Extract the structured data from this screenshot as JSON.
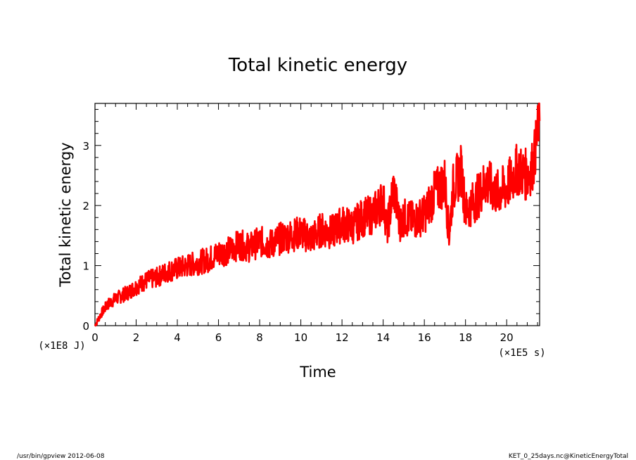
{
  "chart_data": {
    "type": "line",
    "title": "Total kinetic energy",
    "xlabel": "Time",
    "ylabel": "Total kinetic energy",
    "x_scale_label": "(×1E5 s)",
    "y_scale_label": "(×1E8 J)",
    "xlim": [
      0,
      21.6
    ],
    "ylim": [
      0,
      3.7
    ],
    "x_ticks": [
      0,
      2,
      4,
      6,
      8,
      10,
      12,
      14,
      16,
      18,
      20
    ],
    "y_ticks": [
      0,
      1,
      2,
      3
    ],
    "line_color": "#ff0000",
    "series": [
      {
        "name": "KineticEnergyTotal",
        "x": [
          0,
          0.3,
          0.6,
          1.0,
          1.3,
          1.6,
          2.0,
          2.5,
          3.0,
          3.5,
          4.0,
          4.5,
          5.0,
          5.5,
          6.0,
          6.5,
          7.0,
          7.5,
          8.0,
          8.5,
          9.0,
          9.5,
          10.0,
          10.5,
          11.0,
          11.5,
          12.0,
          12.5,
          13.0,
          13.5,
          14.0,
          14.2,
          14.5,
          14.8,
          15.0,
          15.5,
          16.0,
          16.5,
          17.0,
          17.2,
          17.4,
          17.8,
          18.0,
          18.5,
          19.0,
          19.5,
          20.0,
          20.5,
          21.0,
          21.3,
          21.6
        ],
        "values": [
          0.0,
          0.2,
          0.35,
          0.45,
          0.5,
          0.55,
          0.65,
          0.75,
          0.8,
          0.9,
          0.95,
          1.0,
          1.05,
          1.1,
          1.2,
          1.25,
          1.35,
          1.3,
          1.4,
          1.35,
          1.45,
          1.5,
          1.55,
          1.45,
          1.6,
          1.55,
          1.7,
          1.65,
          1.8,
          1.85,
          2.1,
          1.6,
          2.3,
          1.7,
          1.8,
          1.75,
          1.85,
          2.2,
          2.4,
          1.5,
          2.3,
          2.6,
          1.9,
          2.1,
          2.4,
          2.2,
          2.3,
          2.6,
          2.5,
          2.7,
          3.5
        ]
      }
    ]
  },
  "footer": {
    "left": "/usr/bin/gpview  2012-06-08",
    "right": "KET_0_25days.nc@KineticEnergyTotal"
  }
}
